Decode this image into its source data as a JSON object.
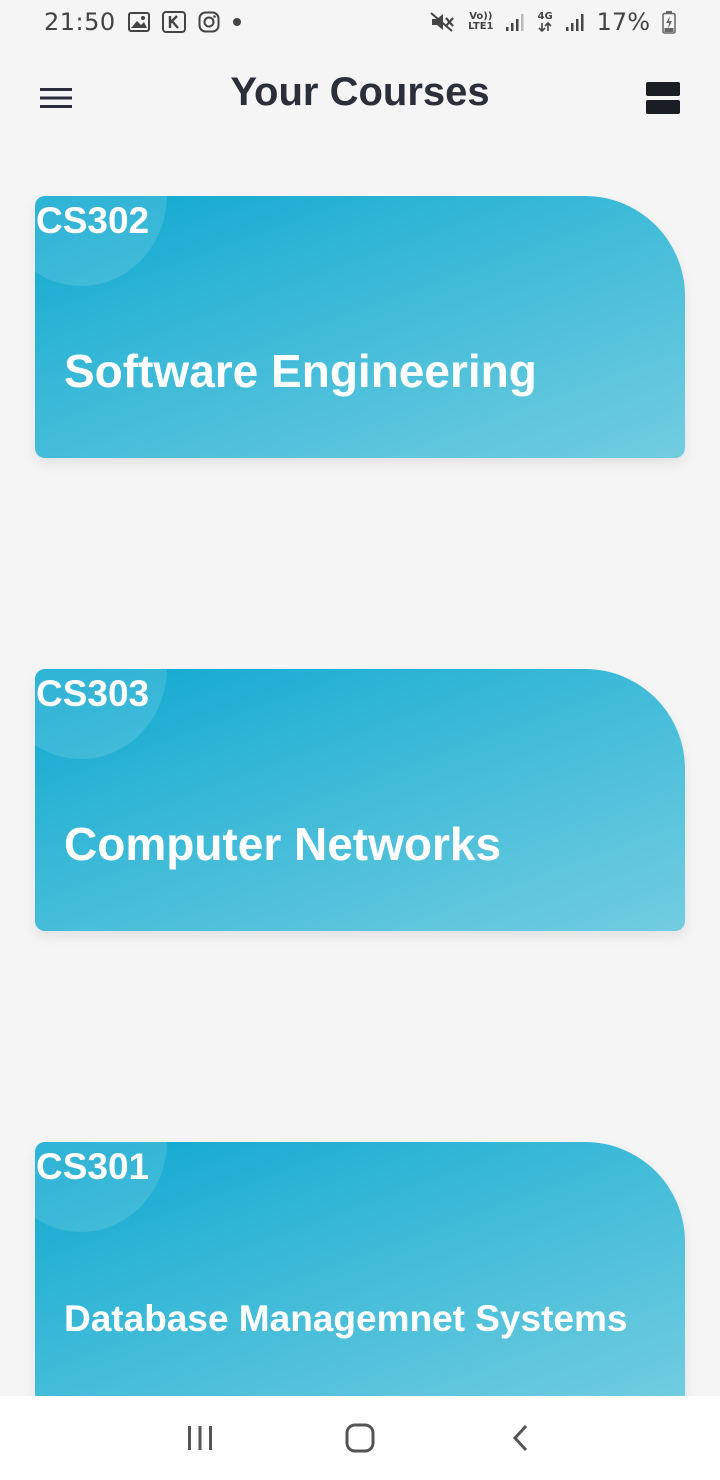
{
  "status_bar": {
    "time": "21:50",
    "battery": "17%",
    "volte_label": "Vo))",
    "lte_label": "LTE1",
    "network_label": "4G",
    "icons": [
      "gallery-icon",
      "k-app-icon",
      "instagram-icon",
      "notification-dot",
      "mute-icon",
      "signal-icon",
      "battery-charging-icon"
    ]
  },
  "app_bar": {
    "title": "Your Courses"
  },
  "courses": [
    {
      "code": "CS302",
      "name": "Software Engineering"
    },
    {
      "code": "CS303",
      "name": "Computer Networks"
    },
    {
      "code": "CS301",
      "name": "Database Managemnet Systems"
    }
  ],
  "colors": {
    "card_gradient_start": "#0ea8d0",
    "card_gradient_end": "#72cde0",
    "background": "#f5f5f5",
    "title": "#2b2f3a"
  },
  "nav_bar": {
    "icons": [
      "recents-icon",
      "home-icon",
      "back-icon"
    ]
  }
}
